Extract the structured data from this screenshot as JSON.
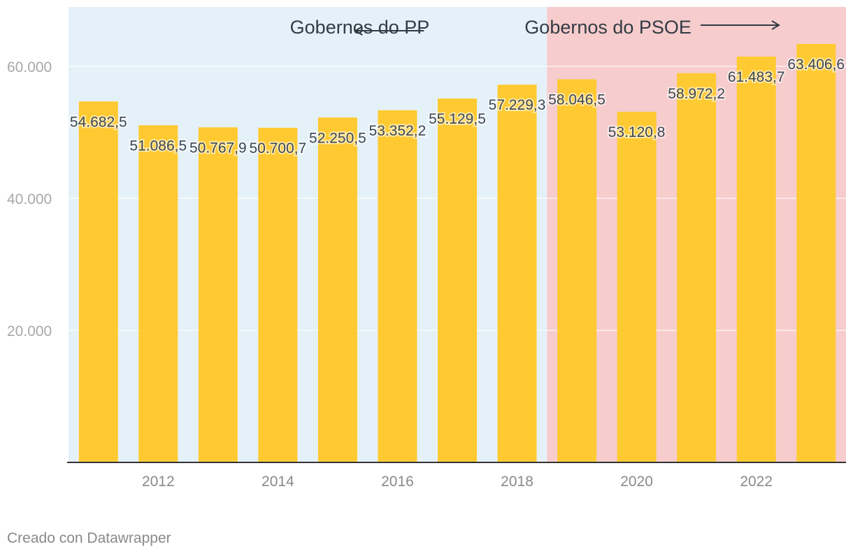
{
  "chart_data": {
    "type": "bar",
    "categories": [
      "2011",
      "2012",
      "2013",
      "2014",
      "2015",
      "2016",
      "2017",
      "2018",
      "2019",
      "2020",
      "2021",
      "2022",
      "2023"
    ],
    "values": [
      54682.5,
      51086.5,
      50767.9,
      50700.7,
      52250.5,
      53352.2,
      55129.5,
      57229.3,
      58046.5,
      53120.8,
      58972.2,
      61483.7,
      63406.6
    ],
    "value_labels": [
      "54.682,5",
      "51.086,5",
      "50.767,9",
      "50.700,7",
      "52.250,5",
      "53.352,2",
      "55.129,5",
      "57.229,3",
      "58.046,5",
      "53.120,8",
      "58.972,2",
      "61.483,7",
      "63.406,6"
    ],
    "x_tick_labels": [
      "2012",
      "2014",
      "2016",
      "2018",
      "2020",
      "2022"
    ],
    "y_ticks": [
      20000,
      40000,
      60000
    ],
    "y_tick_labels": [
      "20.000",
      "40.000",
      "60.000"
    ],
    "ylim": [
      0,
      69000
    ],
    "grid": true,
    "bar_color": "#ffca31",
    "periods": [
      {
        "label": "Gobernos do PP",
        "from": "2011",
        "to": "2018",
        "color": "#e5f1f8",
        "arrow": "left"
      },
      {
        "label": "Gobernos do PSOE",
        "from": "2019",
        "to": "2023",
        "color": "#f6cccd",
        "arrow": "right"
      }
    ],
    "title": "",
    "xlabel": "",
    "ylabel": ""
  },
  "footer": {
    "credit": "Creado con Datawrapper"
  }
}
